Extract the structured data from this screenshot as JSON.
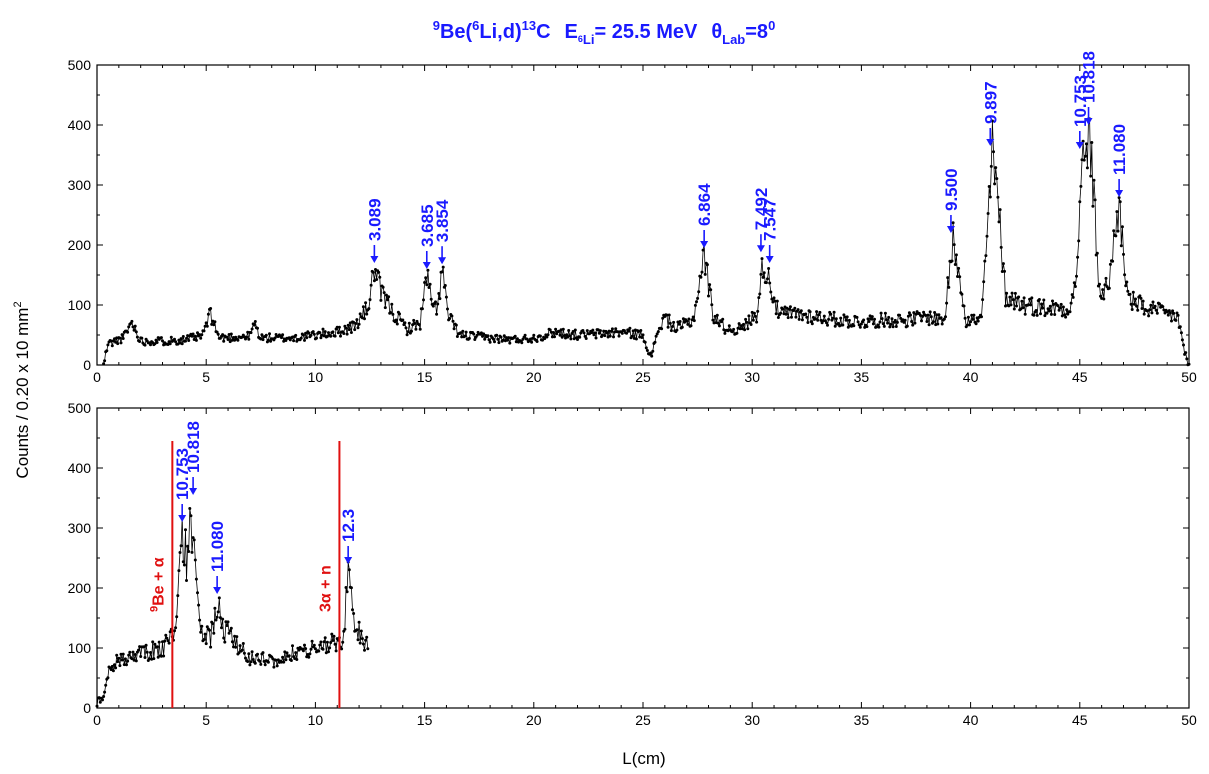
{
  "chart_data": {
    "type": "line",
    "title": {
      "reaction_sup1": "9",
      "reaction_a": "Be(",
      "reaction_sup2": "6",
      "reaction_b": "Li,d)",
      "reaction_sup3": "13",
      "reaction_c": "C",
      "energy_symbol": "E",
      "energy_sub_sup": "6",
      "energy_sub": "Li",
      "energy_value": "= 25.5 MeV",
      "angle_symbol": "θ",
      "angle_sub": "Lab",
      "angle_value": "=8",
      "angle_sup": "0"
    },
    "xlabel": "L(cm)",
    "ylabel": "Counts / 0.20 x 10 mm",
    "ylabel_sup": "2",
    "xlim": [
      0,
      50
    ],
    "ylim": [
      0,
      500
    ],
    "x_ticks": [
      "0",
      "5",
      "10",
      "15",
      "20",
      "25",
      "30",
      "35",
      "40",
      "45",
      "50"
    ],
    "y_ticks": [
      "0",
      "100",
      "200",
      "300",
      "400",
      "500"
    ],
    "colors": {
      "data": "#000000",
      "annotation": "#1a1aff",
      "threshold": "#e01010"
    },
    "panels": [
      {
        "id": "top",
        "baseline": [
          [
            0.3,
            0
          ],
          [
            0.5,
            35
          ],
          [
            1.2,
            45
          ],
          [
            1.6,
            72
          ],
          [
            2.0,
            40
          ],
          [
            3,
            40
          ],
          [
            4,
            42
          ],
          [
            4.8,
            48
          ],
          [
            5.2,
            85
          ],
          [
            5.6,
            45
          ],
          [
            7,
            48
          ],
          [
            7.2,
            70
          ],
          [
            7.5,
            45
          ],
          [
            9,
            45
          ],
          [
            10,
            50
          ],
          [
            11,
            55
          ],
          [
            11.8,
            65
          ],
          [
            12.4,
            95
          ],
          [
            12.7,
            160
          ],
          [
            13,
            120
          ],
          [
            13.6,
            85
          ],
          [
            14.2,
            60
          ],
          [
            14.8,
            70
          ],
          [
            15.1,
            150
          ],
          [
            15.4,
            90
          ],
          [
            15.6,
            100
          ],
          [
            15.8,
            158
          ],
          [
            16.1,
            80
          ],
          [
            16.6,
            50
          ],
          [
            18,
            45
          ],
          [
            19,
            42
          ],
          [
            20,
            45
          ],
          [
            21,
            55
          ],
          [
            22,
            50
          ],
          [
            23,
            52
          ],
          [
            24,
            55
          ],
          [
            25,
            50
          ],
          [
            25.4,
            10
          ],
          [
            25.6,
            50
          ],
          [
            26,
            80
          ],
          [
            26.5,
            60
          ],
          [
            27.3,
            75
          ],
          [
            27.8,
            185
          ],
          [
            28.2,
            85
          ],
          [
            28.8,
            60
          ],
          [
            29.5,
            60
          ],
          [
            30.2,
            85
          ],
          [
            30.5,
            170
          ],
          [
            30.8,
            140
          ],
          [
            31.2,
            85
          ],
          [
            32,
            85
          ],
          [
            33,
            80
          ],
          [
            34,
            75
          ],
          [
            35,
            72
          ],
          [
            36,
            75
          ],
          [
            37,
            75
          ],
          [
            38,
            80
          ],
          [
            38.8,
            75
          ],
          [
            39.2,
            210
          ],
          [
            39.5,
            150
          ],
          [
            39.8,
            75
          ],
          [
            40.5,
            75
          ],
          [
            41,
            355
          ],
          [
            41.3,
            250
          ],
          [
            41.6,
            115
          ],
          [
            42.5,
            100
          ],
          [
            43.5,
            95
          ],
          [
            44.5,
            95
          ],
          [
            44.8,
            130
          ],
          [
            45.1,
            320
          ],
          [
            45.4,
            390
          ],
          [
            45.6,
            300
          ],
          [
            45.9,
            120
          ],
          [
            46.3,
            130
          ],
          [
            46.8,
            270
          ],
          [
            47.2,
            110
          ],
          [
            48,
            95
          ],
          [
            49,
            85
          ],
          [
            49.5,
            80
          ],
          [
            49.8,
            20
          ],
          [
            50,
            0
          ]
        ],
        "annotations": [
          {
            "label": "3.089",
            "x": 12.7,
            "y": 160
          },
          {
            "label": "3.685",
            "x": 15.1,
            "y": 150
          },
          {
            "label": "3.854",
            "x": 15.8,
            "y": 158
          },
          {
            "label": "6.864",
            "x": 27.8,
            "y": 185
          },
          {
            "label": "7.492",
            "x": 30.4,
            "y": 178
          },
          {
            "label": "7.547",
            "x": 30.8,
            "y": 160
          },
          {
            "label": "9.500",
            "x": 39.1,
            "y": 210
          },
          {
            "label": "9.897",
            "x": 40.9,
            "y": 355
          },
          {
            "label": "10.753",
            "x": 45.0,
            "y": 350
          },
          {
            "label": "10.818",
            "x": 45.4,
            "y": 390
          },
          {
            "label": "11.080",
            "x": 46.8,
            "y": 270
          }
        ]
      },
      {
        "id": "bottom",
        "baseline": [
          [
            0,
            10
          ],
          [
            0.3,
            15
          ],
          [
            0.5,
            60
          ],
          [
            1,
            80
          ],
          [
            1.5,
            85
          ],
          [
            2,
            90
          ],
          [
            2.5,
            95
          ],
          [
            3,
            100
          ],
          [
            3.4,
            115
          ],
          [
            3.6,
            120
          ],
          [
            3.9,
            300
          ],
          [
            4.1,
            250
          ],
          [
            4.3,
            300
          ],
          [
            4.6,
            200
          ],
          [
            4.8,
            120
          ],
          [
            5.2,
            115
          ],
          [
            5.5,
            180
          ],
          [
            5.8,
            130
          ],
          [
            6.2,
            120
          ],
          [
            6.5,
            100
          ],
          [
            7,
            85
          ],
          [
            8,
            80
          ],
          [
            9,
            90
          ],
          [
            10,
            100
          ],
          [
            10.5,
            105
          ],
          [
            11,
            110
          ],
          [
            11.3,
            120
          ],
          [
            11.5,
            230
          ],
          [
            11.8,
            130
          ],
          [
            12.1,
            120
          ],
          [
            12.4,
            100
          ]
        ],
        "annotations": [
          {
            "label": "10.753",
            "x": 3.9,
            "y": 300
          },
          {
            "label": "10.818",
            "x": 4.4,
            "y": 345
          },
          {
            "label": "11.080",
            "x": 5.5,
            "y": 180
          },
          {
            "label": "12.3",
            "x": 11.5,
            "y": 230
          }
        ],
        "thresholds": [
          {
            "x": 3.45,
            "sup": "9",
            "label": "Be + α"
          },
          {
            "x": 11.1,
            "label": "3α + n"
          }
        ]
      }
    ],
    "grid": false,
    "legend": "none"
  }
}
